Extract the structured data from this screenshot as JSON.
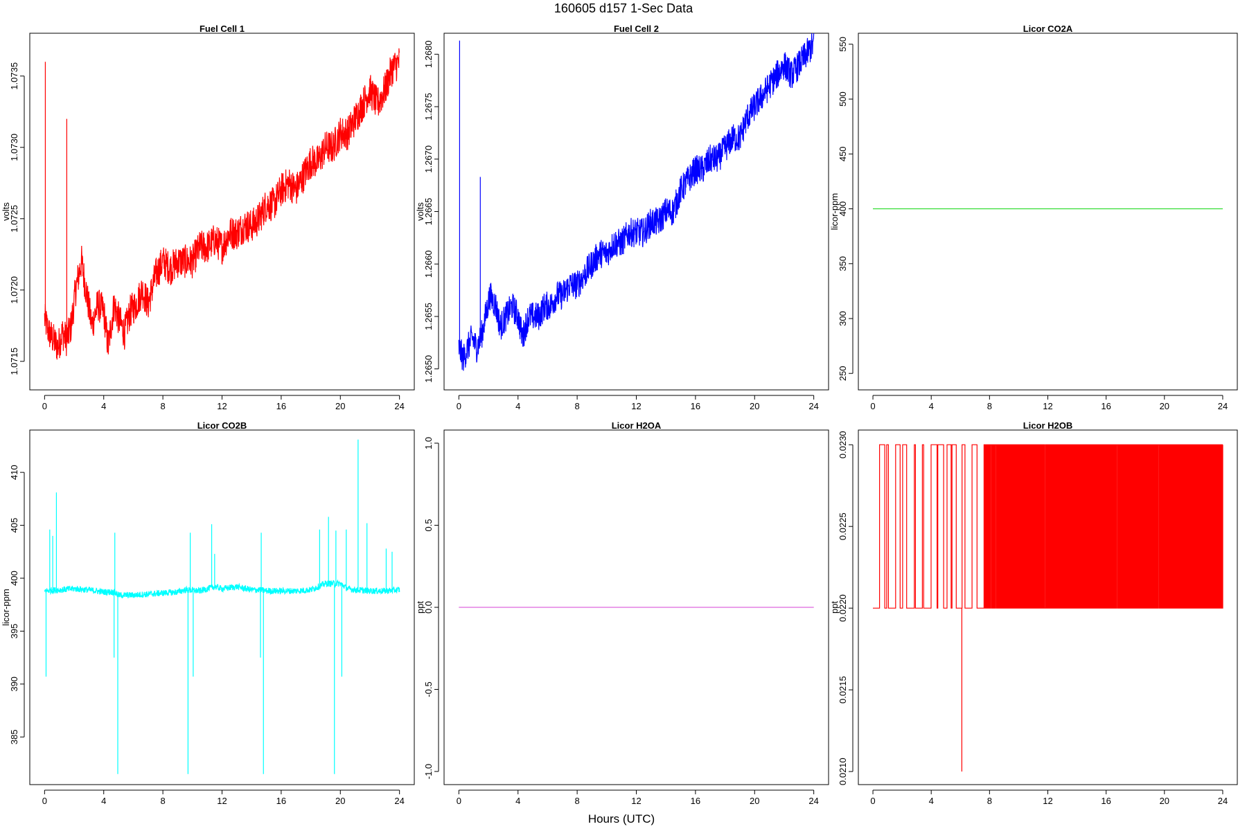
{
  "figure": {
    "title": "160605   d157   1-Sec Data",
    "xlabel": "Hours (UTC)"
  },
  "chart_data": [
    {
      "id": "fc1",
      "type": "line",
      "title": "Fuel Cell 1",
      "xlabel": "",
      "ylabel": "volts",
      "color": "#ff0000",
      "xlim": [
        -1,
        25
      ],
      "ylim": [
        1.0713,
        1.0738
      ],
      "xticks": [
        0,
        4,
        8,
        12,
        16,
        20,
        24
      ],
      "yticks": [
        1.0715,
        1.072,
        1.0725,
        1.073,
        1.0735
      ],
      "ytick_labels": [
        "1.0715",
        "1.0720",
        "1.0725",
        "1.0730",
        "1.0735"
      ],
      "noise": 0.00012,
      "x": [
        0,
        0.3,
        0.6,
        0.9,
        1.2,
        1.5,
        1.8,
        2.1,
        2.5,
        2.8,
        3.2,
        3.6,
        4.0,
        4.3,
        4.7,
        5.0,
        5.4,
        5.8,
        6.2,
        6.6,
        7.0,
        7.5,
        8.0,
        8.5,
        9.0,
        9.5,
        10.0,
        10.5,
        11.0,
        11.5,
        12.0,
        12.5,
        13.0,
        13.5,
        14.0,
        14.5,
        15.0,
        15.5,
        16.0,
        16.5,
        17.0,
        17.5,
        18.0,
        18.5,
        19.0,
        19.5,
        20.0,
        20.5,
        21.0,
        21.5,
        22.0,
        22.5,
        23.0,
        23.5,
        24.0
      ],
      "y": [
        1.0718,
        1.0717,
        1.07165,
        1.0716,
        1.0717,
        1.07165,
        1.07175,
        1.072,
        1.0722,
        1.072,
        1.07175,
        1.0719,
        1.07185,
        1.0716,
        1.0719,
        1.0718,
        1.0717,
        1.07185,
        1.0719,
        1.072,
        1.0719,
        1.0721,
        1.0722,
        1.07215,
        1.0722,
        1.0722,
        1.0722,
        1.0723,
        1.0723,
        1.07235,
        1.0723,
        1.0724,
        1.0724,
        1.07245,
        1.07245,
        1.0725,
        1.0726,
        1.0726,
        1.0727,
        1.07275,
        1.0727,
        1.0728,
        1.0729,
        1.0729,
        1.073,
        1.073,
        1.0731,
        1.0731,
        1.0732,
        1.0733,
        1.0734,
        1.0733,
        1.0734,
        1.07355,
        1.0736
      ],
      "spikes": [
        {
          "x": 0.05,
          "y": 1.0736
        },
        {
          "x": 1.5,
          "y": 1.0732
        }
      ]
    },
    {
      "id": "fc2",
      "type": "line",
      "title": "Fuel Cell 2",
      "xlabel": "",
      "ylabel": "volts",
      "color": "#0000ff",
      "xlim": [
        -1,
        25
      ],
      "ylim": [
        1.2648,
        1.2682
      ],
      "xticks": [
        0,
        4,
        8,
        12,
        16,
        20,
        24
      ],
      "yticks": [
        1.265,
        1.2655,
        1.266,
        1.2665,
        1.267,
        1.2675,
        1.268
      ],
      "ytick_labels": [
        "1.2650",
        "1.2655",
        "1.2660",
        "1.2665",
        "1.2670",
        "1.2675",
        "1.2680"
      ],
      "noise": 0.00014,
      "x": [
        0,
        0.3,
        0.6,
        0.9,
        1.2,
        1.5,
        1.8,
        2.1,
        2.5,
        2.8,
        3.2,
        3.6,
        4.0,
        4.3,
        4.7,
        5.0,
        5.4,
        5.8,
        6.2,
        6.6,
        7.0,
        7.5,
        8.0,
        8.5,
        9.0,
        9.5,
        10.0,
        10.5,
        11.0,
        11.5,
        12.0,
        12.5,
        13.0,
        13.5,
        14.0,
        14.5,
        15.0,
        15.5,
        16.0,
        16.5,
        17.0,
        17.5,
        18.0,
        18.5,
        19.0,
        19.5,
        20.0,
        20.5,
        21.0,
        21.5,
        22.0,
        22.5,
        23.0,
        23.5,
        24.0
      ],
      "y": [
        1.2652,
        1.2651,
        1.2652,
        1.2653,
        1.2652,
        1.2653,
        1.2655,
        1.2657,
        1.2656,
        1.2654,
        1.2655,
        1.2656,
        1.2655,
        1.2653,
        1.2655,
        1.2655,
        1.2655,
        1.2656,
        1.2656,
        1.2657,
        1.2657,
        1.2658,
        1.2658,
        1.2659,
        1.266,
        1.2661,
        1.2661,
        1.2662,
        1.2662,
        1.2663,
        1.2663,
        1.2663,
        1.2664,
        1.2664,
        1.2665,
        1.2665,
        1.2667,
        1.2668,
        1.2669,
        1.2669,
        1.267,
        1.267,
        1.2671,
        1.2672,
        1.2672,
        1.2674,
        1.2675,
        1.2676,
        1.2677,
        1.2678,
        1.2679,
        1.2678,
        1.2679,
        1.268,
        1.2681
      ],
      "spikes": [
        {
          "x": 0.05,
          "y": 1.26813
        },
        {
          "x": 1.45,
          "y": 1.26683
        }
      ]
    },
    {
      "id": "co2a",
      "type": "line",
      "title": "Licor CO2A",
      "xlabel": "",
      "ylabel": "licor-ppm",
      "color": "#33dd33",
      "xlim": [
        -1,
        25
      ],
      "ylim": [
        235,
        560
      ],
      "xticks": [
        0,
        4,
        8,
        12,
        16,
        20,
        24
      ],
      "yticks": [
        250,
        300,
        350,
        400,
        450,
        500,
        550
      ],
      "ytick_labels": [
        "250",
        "300",
        "350",
        "400",
        "450",
        "500",
        "550"
      ],
      "noise": 0,
      "x": [
        0,
        24
      ],
      "y": [
        400,
        400
      ],
      "spikes": []
    },
    {
      "id": "co2b",
      "type": "line",
      "title": "Licor CO2B",
      "xlabel": "",
      "ylabel": "licor-ppm",
      "color": "#00ffff",
      "xlim": [
        -1,
        25
      ],
      "ylim": [
        380.5,
        414
      ],
      "xticks": [
        0,
        4,
        8,
        12,
        16,
        20,
        24
      ],
      "yticks": [
        385,
        390,
        395,
        400,
        405,
        410
      ],
      "ytick_labels": [
        "385",
        "390",
        "395",
        "400",
        "405",
        "410"
      ],
      "noise": 0.3,
      "x": [
        0,
        1,
        2,
        3,
        4,
        4.7,
        5,
        6,
        7,
        8,
        9,
        9.5,
        10.5,
        11,
        11.5,
        12,
        13,
        14,
        14.5,
        15,
        16,
        17,
        18,
        19,
        20,
        20.5,
        21,
        22,
        23,
        24
      ],
      "y": [
        398.8,
        398.9,
        399.0,
        398.9,
        398.7,
        398.7,
        398.4,
        398.4,
        398.5,
        398.6,
        398.7,
        398.9,
        398.8,
        399.0,
        399.2,
        399.0,
        399.2,
        398.9,
        398.9,
        398.8,
        398.8,
        398.8,
        398.9,
        399.5,
        399.5,
        399.0,
        398.9,
        398.8,
        398.8,
        398.9
      ],
      "spikes": [
        {
          "x": 0.1,
          "y": 390.7
        },
        {
          "x": 0.35,
          "y": 404.6
        },
        {
          "x": 0.55,
          "y": 404.0
        },
        {
          "x": 0.8,
          "y": 408.1
        },
        {
          "x": 4.7,
          "y": 392.5
        },
        {
          "x": 4.75,
          "y": 404.3
        },
        {
          "x": 4.95,
          "y": 381.5
        },
        {
          "x": 9.7,
          "y": 381.5
        },
        {
          "x": 9.85,
          "y": 404.3
        },
        {
          "x": 10.05,
          "y": 390.7
        },
        {
          "x": 11.3,
          "y": 405.1
        },
        {
          "x": 11.5,
          "y": 402.3
        },
        {
          "x": 14.6,
          "y": 392.5
        },
        {
          "x": 14.65,
          "y": 404.3
        },
        {
          "x": 14.8,
          "y": 381.5
        },
        {
          "x": 18.6,
          "y": 404.6
        },
        {
          "x": 19.2,
          "y": 405.8
        },
        {
          "x": 19.6,
          "y": 381.5
        },
        {
          "x": 19.7,
          "y": 404.5
        },
        {
          "x": 20.1,
          "y": 390.7
        },
        {
          "x": 20.4,
          "y": 404.6
        },
        {
          "x": 21.2,
          "y": 413.1
        },
        {
          "x": 21.8,
          "y": 405.2
        },
        {
          "x": 23.1,
          "y": 402.8
        },
        {
          "x": 23.5,
          "y": 402.5
        }
      ]
    },
    {
      "id": "h2oa",
      "type": "line",
      "title": "Licor H2OA",
      "xlabel": "",
      "ylabel": "ppt",
      "color": "#dd66dd",
      "xlim": [
        -1,
        25
      ],
      "ylim": [
        -1.08,
        1.08
      ],
      "xticks": [
        0,
        4,
        8,
        12,
        16,
        20,
        24
      ],
      "yticks": [
        -1,
        -0.5,
        0,
        0.5,
        1
      ],
      "ytick_labels": [
        "-1.0",
        "-0.5",
        "0.0",
        "0.5",
        "1.0"
      ],
      "noise": 0,
      "x": [
        0,
        24
      ],
      "y": [
        0,
        0
      ],
      "spikes": []
    },
    {
      "id": "h2ob",
      "type": "line",
      "title": "Licor H2OB",
      "xlabel": "",
      "ylabel": "ppt",
      "color": "#ff0000",
      "xlim": [
        -1,
        25
      ],
      "ylim": [
        0.02092,
        0.02309
      ],
      "xticks": [
        0,
        4,
        8,
        12,
        16,
        20,
        24
      ],
      "yticks": [
        0.021,
        0.0215,
        0.022,
        0.0225,
        0.023
      ],
      "ytick_labels": [
        "0.0210",
        "0.0215",
        "0.0220",
        "0.0225",
        "0.0230"
      ],
      "noise": 0,
      "x": [
        0,
        24
      ],
      "y": [
        0.022,
        0.022
      ],
      "levels": [
        0.022,
        0.023
      ],
      "dense_from": 7.5,
      "spikes": [
        {
          "x": 6.1,
          "y": 0.021
        }
      ]
    }
  ]
}
